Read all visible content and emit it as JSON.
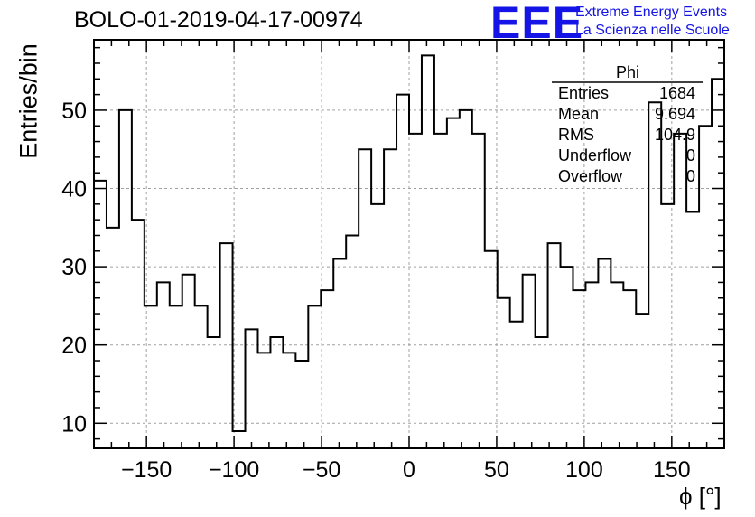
{
  "title": "BOLO-01-2019-04-17-00974",
  "logo": {
    "mark": "EEE",
    "line1": "Extreme Energy Events",
    "line2": "La Scienza nelle Scuole",
    "color": "#1414e6"
  },
  "stats_box": {
    "title": "Phi",
    "rows": [
      {
        "name": "Entries",
        "value": "1684"
      },
      {
        "name": "Mean",
        "value": "9.694"
      },
      {
        "name": "RMS",
        "value": "104.9"
      },
      {
        "name": "Underflow",
        "value": "0"
      },
      {
        "name": "Overflow",
        "value": "0"
      }
    ]
  },
  "chart_data": {
    "type": "histogram",
    "xlabel": "ϕ [°]",
    "ylabel": "Entries/bin",
    "xlim": [
      -180,
      180
    ],
    "ylim": [
      6.8,
      59
    ],
    "grid": true,
    "bin_width": 7.2,
    "x_ticks": [
      -150,
      -100,
      -50,
      0,
      50,
      100,
      150
    ],
    "x_tick_labels": [
      "−150",
      "−100",
      "−50",
      "0",
      "50",
      "100",
      "150"
    ],
    "y_ticks": [
      10,
      20,
      30,
      40,
      50
    ],
    "y_tick_labels": [
      "10",
      "20",
      "30",
      "40",
      "50"
    ],
    "values": [
      41,
      35,
      50,
      36,
      25,
      28,
      25,
      29,
      25,
      21,
      33,
      9,
      22,
      19,
      21,
      19,
      18,
      25,
      27,
      31,
      34,
      45,
      38,
      45,
      52,
      47,
      57,
      47,
      49,
      50,
      47,
      32,
      26,
      23,
      29,
      21,
      33,
      30,
      27,
      28,
      31,
      28,
      27,
      24,
      51,
      38,
      47,
      37,
      48,
      54
    ]
  }
}
